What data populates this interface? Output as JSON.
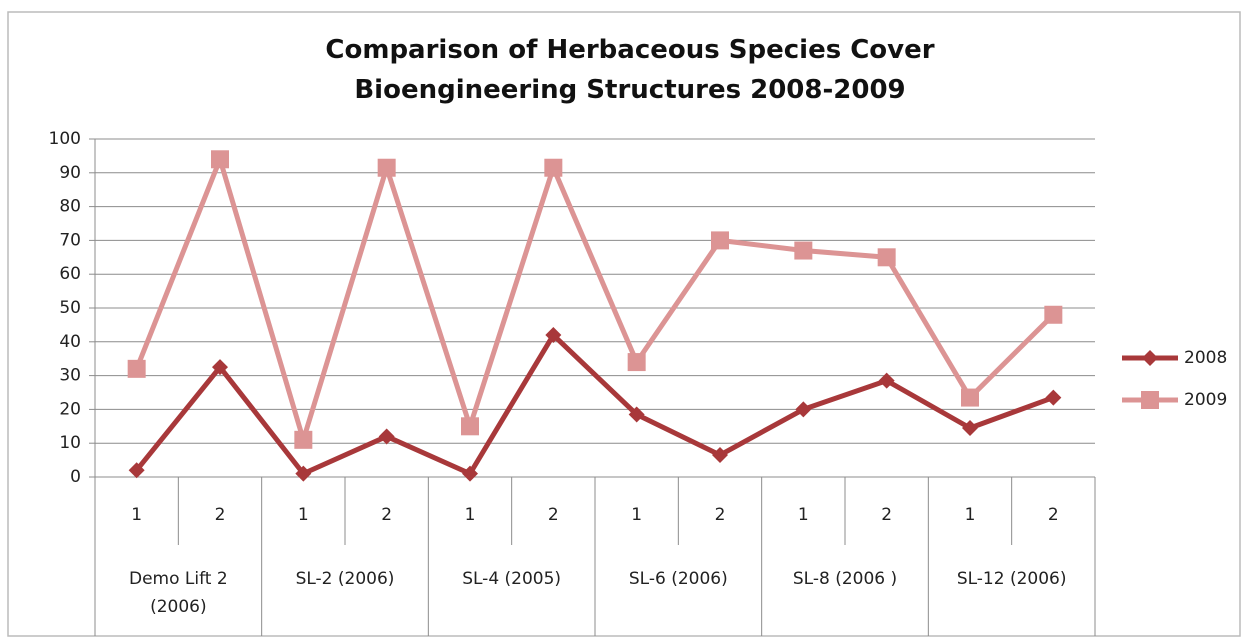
{
  "chart_data": {
    "type": "line",
    "title": "Comparison of Herbaceous Species Cover Bioengineering Structures 2008-2009",
    "categories": [
      "1",
      "2",
      "1",
      "2",
      "1",
      "2",
      "1",
      "2",
      "1",
      "2",
      "1",
      "2"
    ],
    "groups": [
      "Demo Lift 2 (2006)",
      "SL-2 (2006)",
      "SL-4 (2005)",
      "SL-6 (2006)",
      "SL-8 (2006 )",
      "SL-12 (2006)"
    ],
    "series": [
      {
        "name": "2008",
        "color": "#a8383a",
        "marker": "diamond",
        "values": [
          2,
          32.5,
          1,
          12,
          1,
          42,
          18.5,
          6.5,
          20,
          28.5,
          14.5,
          23.5
        ]
      },
      {
        "name": "2009",
        "color": "#dc9494",
        "marker": "square",
        "values": [
          32,
          94,
          11,
          91.5,
          15,
          91.5,
          34,
          70,
          67,
          65,
          23.5,
          48
        ]
      }
    ],
    "ylim": [
      0,
      100
    ],
    "yticks": [
      0,
      10,
      20,
      30,
      40,
      50,
      60,
      70,
      80,
      90,
      100
    ],
    "grid": true,
    "legend": "right"
  }
}
